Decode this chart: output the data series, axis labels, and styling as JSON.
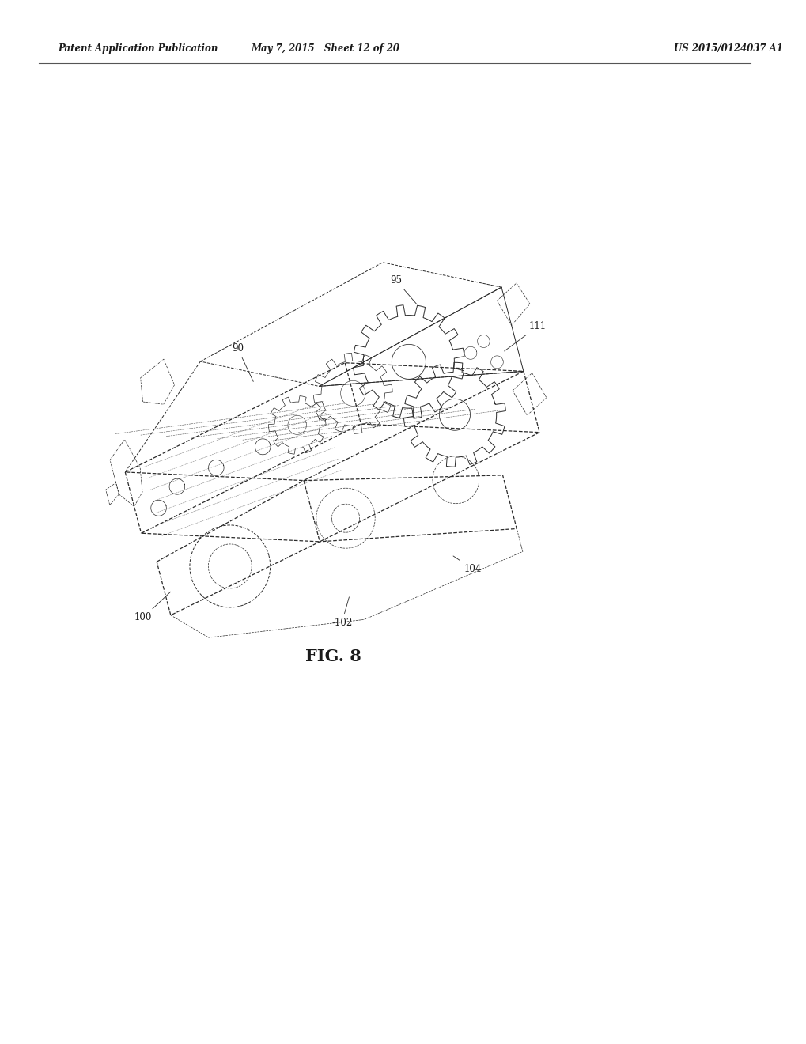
{
  "header_left": "Patent Application Publication",
  "header_mid": "May 7, 2015   Sheet 12 of 20",
  "header_right": "US 2015/0124037 A1",
  "figure_caption": "FIG. 8",
  "background_color": "#ffffff",
  "text_color": "#1a1a1a",
  "drawing_color": "#2a2a2a",
  "fig_width": 10.2,
  "fig_height": 13.2,
  "dpi": 100
}
